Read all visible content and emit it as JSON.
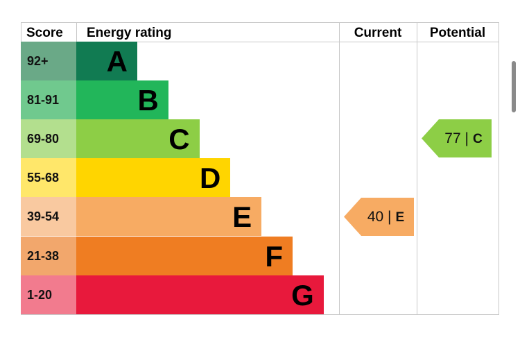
{
  "chart_data": {
    "type": "bar",
    "headers": {
      "score": "Score",
      "rating": "Energy rating",
      "current": "Current",
      "potential": "Potential"
    },
    "bands": [
      {
        "score": "92+",
        "letter": "A",
        "color": "#117b52",
        "score_color": "#6aa987"
      },
      {
        "score": "81-91",
        "letter": "B",
        "color": "#22b65a",
        "score_color": "#70c98e"
      },
      {
        "score": "69-80",
        "letter": "C",
        "color": "#8dce46",
        "score_color": "#b3df8e"
      },
      {
        "score": "55-68",
        "letter": "D",
        "color": "#ffd500",
        "score_color": "#ffe76a"
      },
      {
        "score": "39-54",
        "letter": "E",
        "color": "#f7ab63",
        "score_color": "#f9c9a0"
      },
      {
        "score": "21-38",
        "letter": "F",
        "color": "#ef7d22",
        "score_color": "#f2a76c"
      },
      {
        "score": "1-20",
        "letter": "G",
        "color": "#e8193c",
        "score_color": "#f27b8e"
      }
    ],
    "current": {
      "value": "40",
      "letter": "E",
      "separator": "|",
      "color": "#f7ab63"
    },
    "potential": {
      "value": "77",
      "letter": "C",
      "separator": "|",
      "color": "#8dce46"
    }
  }
}
